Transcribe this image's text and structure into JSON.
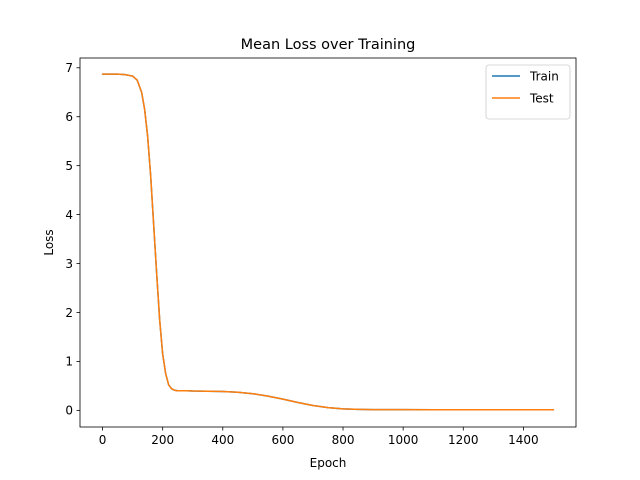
{
  "chart_data": {
    "type": "line",
    "title": "Mean Loss over Training",
    "xlabel": "Epoch",
    "ylabel": "Loss",
    "xlim": [
      -75,
      1575
    ],
    "ylim": [
      -0.34,
      7.2
    ],
    "xticks": [
      0,
      200,
      400,
      600,
      800,
      1000,
      1200,
      1400
    ],
    "yticks": [
      0,
      1,
      2,
      3,
      4,
      5,
      6,
      7
    ],
    "grid": false,
    "legend_position": "top-right",
    "series": [
      {
        "name": "Train",
        "color": "#1f77b4",
        "x": [
          0,
          25,
          50,
          75,
          100,
          115,
          130,
          140,
          150,
          160,
          170,
          180,
          190,
          200,
          210,
          220,
          230,
          240,
          250,
          260,
          280,
          300,
          350,
          400,
          450,
          500,
          550,
          600,
          650,
          700,
          750,
          800,
          850,
          900,
          1000,
          1100,
          1200,
          1300,
          1400,
          1500
        ],
        "y": [
          6.87,
          6.87,
          6.87,
          6.86,
          6.83,
          6.75,
          6.5,
          6.15,
          5.6,
          4.8,
          3.8,
          2.8,
          1.85,
          1.15,
          0.75,
          0.52,
          0.44,
          0.41,
          0.4,
          0.4,
          0.4,
          0.395,
          0.39,
          0.385,
          0.37,
          0.34,
          0.29,
          0.23,
          0.16,
          0.1,
          0.055,
          0.03,
          0.02,
          0.016,
          0.014,
          0.013,
          0.013,
          0.013,
          0.013,
          0.013
        ]
      },
      {
        "name": "Test",
        "color": "#ff7f0e",
        "x": [
          0,
          25,
          50,
          75,
          100,
          115,
          130,
          140,
          150,
          160,
          170,
          180,
          190,
          200,
          210,
          220,
          230,
          240,
          250,
          260,
          280,
          300,
          350,
          400,
          450,
          500,
          550,
          600,
          650,
          700,
          750,
          800,
          850,
          900,
          1000,
          1100,
          1200,
          1300,
          1400,
          1500
        ],
        "y": [
          6.87,
          6.87,
          6.87,
          6.86,
          6.83,
          6.75,
          6.5,
          6.15,
          5.6,
          4.8,
          3.8,
          2.8,
          1.85,
          1.15,
          0.75,
          0.52,
          0.44,
          0.41,
          0.4,
          0.4,
          0.4,
          0.395,
          0.39,
          0.385,
          0.37,
          0.34,
          0.29,
          0.23,
          0.16,
          0.1,
          0.055,
          0.03,
          0.02,
          0.016,
          0.014,
          0.013,
          0.013,
          0.013,
          0.013,
          0.013
        ]
      }
    ]
  }
}
